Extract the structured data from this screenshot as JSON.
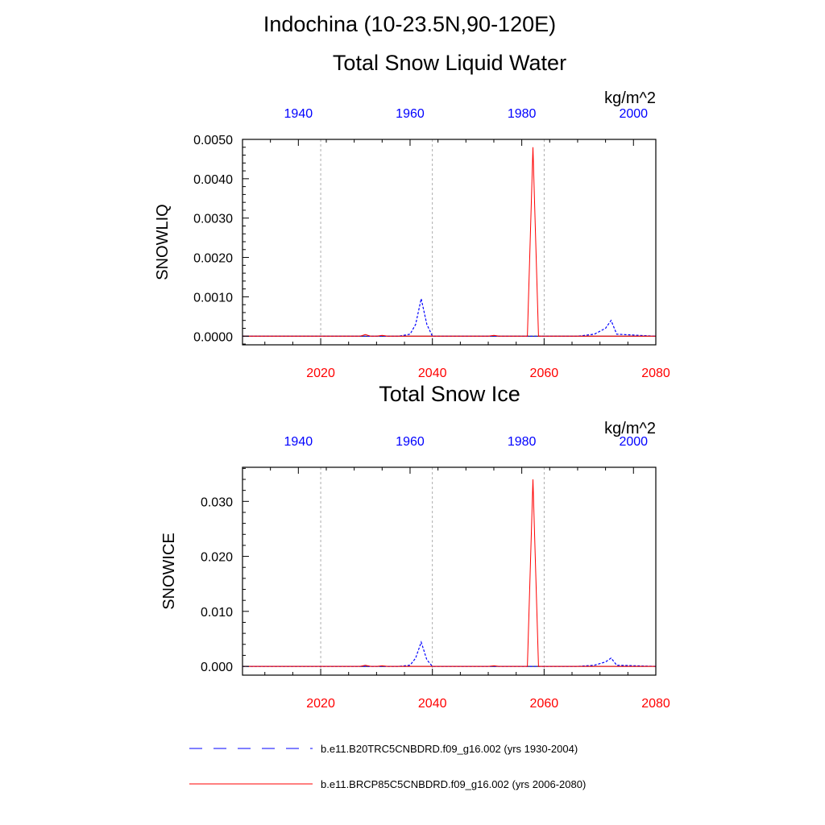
{
  "page_title": "Indochina (10-23.5N,90-120E)",
  "colors": {
    "historical": "#0000ff",
    "future": "#ff0000",
    "grid": "#999999",
    "axis": "#000000"
  },
  "legend": {
    "items": [
      {
        "label": "b.e11.B20TRC5CNBDRD.f09_g16.002 (yrs 1930-2004)",
        "color": "#0000ff",
        "style": "dashed"
      },
      {
        "label": "b.e11.BRCP85C5CNBDRD.f09_g16.002 (yrs 2006-2080)",
        "color": "#ff0000",
        "style": "solid"
      }
    ]
  },
  "chart_data": [
    {
      "type": "line",
      "title": "Total Snow Liquid Water",
      "units": "kg/m^2",
      "ylabel": "SNOWLIQ",
      "ylim": [
        -0.00022,
        0.005
      ],
      "yticks": [
        0,
        0.001,
        0.002,
        0.003,
        0.004,
        0.005
      ],
      "ytick_labels": [
        "0.0000",
        "0.0010",
        "0.0020",
        "0.0030",
        "0.0040",
        "0.0050"
      ],
      "x_bottom": {
        "range": [
          2006,
          2080
        ],
        "ticks": [
          2020,
          2040,
          2060,
          2080
        ],
        "labels": [
          "2020",
          "2040",
          "2060",
          "2080"
        ],
        "color": "#ff0000"
      },
      "x_top": {
        "range": [
          1930,
          2004
        ],
        "ticks": [
          1940,
          1960,
          1980,
          2000
        ],
        "labels": [
          "1940",
          "1960",
          "1980",
          "2000"
        ],
        "color": "#0000ff"
      },
      "series": [
        {
          "name": "b.e11.B20TRC5CNBDRD.f09_g16.002 (yrs 1930-2004)",
          "axis": "top",
          "style": "dashed",
          "color": "#0000ff",
          "x": [
            1930,
            1958,
            1960,
            1961,
            1962,
            1963,
            1964,
            1990,
            1993,
            1995,
            1996,
            1997,
            2004
          ],
          "y": [
            0,
            0,
            5e-05,
            0.0003,
            0.00095,
            0.0003,
            0,
            0,
            5e-05,
            0.0002,
            0.0004,
            5e-05,
            0
          ]
        },
        {
          "name": "b.e11.BRCP85C5CNBDRD.f09_g16.002 (yrs 2006-2080)",
          "axis": "bottom",
          "style": "solid",
          "color": "#ff0000",
          "x": [
            2006,
            2027,
            2028,
            2029,
            2030,
            2031,
            2032,
            2050,
            2051,
            2052,
            2057,
            2058,
            2059,
            2080
          ],
          "y": [
            0,
            0,
            4e-05,
            0,
            0,
            2e-05,
            0,
            0,
            2e-05,
            0,
            0,
            0.0048,
            0,
            0
          ]
        }
      ]
    },
    {
      "type": "line",
      "title": "Total Snow Ice",
      "units": "kg/m^2",
      "ylabel": "SNOWICE",
      "ylim": [
        -0.0016,
        0.0362
      ],
      "yticks": [
        0,
        0.01,
        0.02,
        0.03
      ],
      "ytick_labels": [
        "0.000",
        "0.010",
        "0.020",
        "0.030"
      ],
      "x_bottom": {
        "range": [
          2006,
          2080
        ],
        "ticks": [
          2020,
          2040,
          2060,
          2080
        ],
        "labels": [
          "2020",
          "2040",
          "2060",
          "2080"
        ],
        "color": "#ff0000"
      },
      "x_top": {
        "range": [
          1930,
          2004
        ],
        "ticks": [
          1940,
          1960,
          1980,
          2000
        ],
        "labels": [
          "1940",
          "1960",
          "1980",
          "2000"
        ],
        "color": "#0000ff"
      },
      "series": [
        {
          "name": "b.e11.B20TRC5CNBDRD.f09_g16.002 (yrs 1930-2004)",
          "axis": "top",
          "style": "dashed",
          "color": "#0000ff",
          "x": [
            1930,
            1958,
            1960,
            1961,
            1962,
            1963,
            1964,
            1990,
            1993,
            1995,
            1996,
            1997,
            2004
          ],
          "y": [
            0,
            0,
            0.0002,
            0.0015,
            0.0044,
            0.0012,
            0,
            0,
            0.0002,
            0.0008,
            0.0015,
            0.0002,
            0
          ]
        },
        {
          "name": "b.e11.BRCP85C5CNBDRD.f09_g16.002 (yrs 2006-2080)",
          "axis": "bottom",
          "style": "solid",
          "color": "#ff0000",
          "x": [
            2006,
            2027,
            2028,
            2029,
            2030,
            2031,
            2032,
            2050,
            2051,
            2052,
            2057,
            2058,
            2059,
            2080
          ],
          "y": [
            0,
            0,
            0.0002,
            0,
            0,
            0.0001,
            0,
            0,
            0.0001,
            0,
            0,
            0.034,
            0,
            0
          ]
        }
      ]
    }
  ]
}
